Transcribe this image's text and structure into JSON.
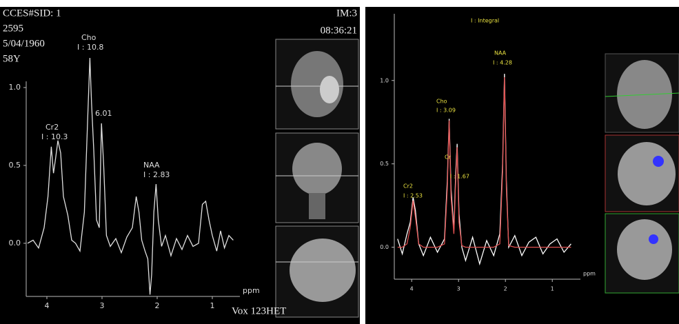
{
  "chart_data": [
    {
      "type": "line",
      "header": [
        "CCES#SID: 1",
        "2595",
        "5/04/1960",
        "58Y"
      ],
      "header_right": [
        "IM:3",
        "08:36:21"
      ],
      "footer": "Vox 123HET",
      "annotations": [
        "Cho",
        "I : 10.8",
        "Cr2",
        "I : 10.3",
        "6.01",
        "NAA",
        "I : 2.83"
      ],
      "xlabel": "ppm",
      "x": [
        4.35,
        4.25,
        4.15,
        4.05,
        3.98,
        3.92,
        3.88,
        3.84,
        3.8,
        3.75,
        3.7,
        3.62,
        3.55,
        3.48,
        3.4,
        3.32,
        3.26,
        3.22,
        3.19,
        3.15,
        3.1,
        3.05,
        3.01,
        2.97,
        2.92,
        2.85,
        2.75,
        2.65,
        2.55,
        2.45,
        2.38,
        2.33,
        2.28,
        2.22,
        2.17,
        2.13,
        2.1,
        2.06,
        2.02,
        1.98,
        1.92,
        1.85,
        1.75,
        1.65,
        1.55,
        1.45,
        1.35,
        1.25,
        1.18,
        1.12,
        1.06,
        1.0,
        0.92,
        0.85,
        0.78,
        0.7,
        0.62
      ],
      "values": [
        0.0,
        0.02,
        -0.03,
        0.1,
        0.3,
        0.62,
        0.45,
        0.55,
        0.66,
        0.58,
        0.3,
        0.18,
        0.02,
        0.0,
        -0.05,
        0.2,
        0.8,
        1.19,
        0.9,
        0.6,
        0.15,
        0.1,
        0.77,
        0.5,
        0.05,
        -0.02,
        0.03,
        -0.06,
        0.04,
        0.1,
        0.3,
        0.2,
        0.02,
        -0.05,
        -0.1,
        -0.33,
        -0.2,
        0.2,
        0.38,
        0.15,
        -0.02,
        0.05,
        -0.08,
        0.03,
        -0.04,
        0.05,
        -0.02,
        0.0,
        0.25,
        0.27,
        0.15,
        0.05,
        -0.05,
        0.08,
        -0.03,
        0.05,
        0.02
      ],
      "color": "#e0e0e0",
      "xlim": [
        4.4,
        0.5
      ],
      "xticks": [
        4,
        3,
        2,
        1
      ],
      "ylim": [
        -0.35,
        1.5
      ],
      "yticks": [
        {
          "value": 0,
          "label": "0.0"
        },
        {
          "value": 0.5,
          "label": "0.5"
        },
        {
          "value": 1,
          "label": "1.0"
        }
      ]
    },
    {
      "type": "line",
      "annotations": [
        "I : Integral",
        "Cr2",
        "I : 2.53",
        "Cho",
        "I : 3.09",
        "Cr",
        "I : 1.67",
        "NAA",
        "I : 4.28"
      ],
      "xlabel": "ppm",
      "x": [
        4.3,
        4.2,
        4.1,
        4.03,
        3.97,
        3.92,
        3.85,
        3.75,
        3.6,
        3.45,
        3.3,
        3.24,
        3.2,
        3.16,
        3.1,
        3.06,
        3.03,
        2.99,
        2.93,
        2.85,
        2.7,
        2.55,
        2.4,
        2.25,
        2.12,
        2.06,
        2.02,
        1.98,
        1.93,
        1.8,
        1.65,
        1.5,
        1.35,
        1.2,
        1.05,
        0.9,
        0.75,
        0.6
      ],
      "series": [
        {
          "color": "#ffffff",
          "values": [
            0.05,
            -0.04,
            0.08,
            0.15,
            0.3,
            0.22,
            0.02,
            -0.05,
            0.06,
            -0.03,
            0.05,
            0.4,
            0.77,
            0.35,
            0.1,
            0.45,
            0.62,
            0.2,
            0.0,
            -0.08,
            0.06,
            -0.1,
            0.04,
            -0.05,
            0.08,
            0.5,
            1.04,
            0.4,
            0.0,
            0.07,
            -0.05,
            0.03,
            0.06,
            -0.04,
            0.02,
            0.05,
            -0.03,
            0.02
          ]
        },
        {
          "color": "#e05050",
          "values": [
            0,
            0,
            0.02,
            0.12,
            0.28,
            0.18,
            0.02,
            0,
            0,
            0,
            0.02,
            0.35,
            0.76,
            0.3,
            0.08,
            0.4,
            0.6,
            0.15,
            0.01,
            0,
            0,
            0,
            0,
            0,
            0.02,
            0.45,
            1.02,
            0.35,
            0.01,
            0,
            0,
            0,
            0,
            0,
            0,
            0,
            0,
            0
          ]
        }
      ],
      "xlim": [
        4.4,
        0.4
      ],
      "xticks": [
        4,
        3,
        2,
        1
      ],
      "ylim": [
        -0.2,
        1.4
      ],
      "yticks": [
        {
          "value": 0,
          "label": "0.0"
        },
        {
          "value": 0.5,
          "label": "0.5"
        },
        {
          "value": 1,
          "label": "1.0"
        }
      ]
    }
  ]
}
